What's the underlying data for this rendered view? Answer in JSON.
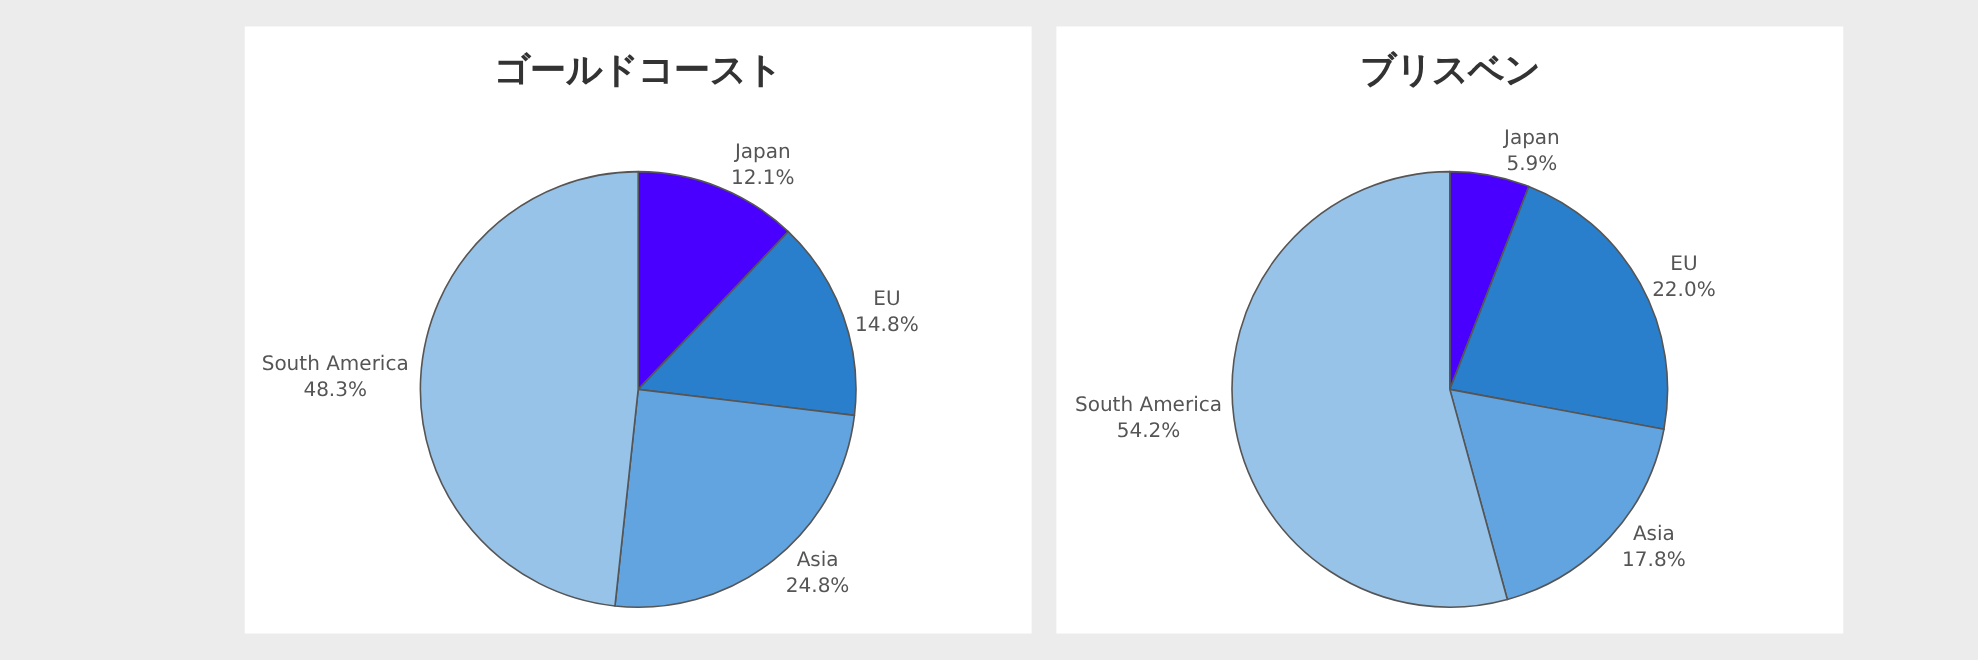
{
  "chart_data": [
    {
      "type": "pie",
      "title": "ゴールドコースト",
      "categories": [
        "Japan",
        "EU",
        "Asia",
        "South America"
      ],
      "values": [
        12.1,
        14.8,
        24.8,
        48.3
      ],
      "value_labels": [
        "12.1%",
        "14.8%",
        "24.8%",
        "48.3%"
      ],
      "colors": [
        "#4a00ff",
        "#2a7fcc",
        "#62a4e0",
        "#98c3e8"
      ],
      "legend": false
    },
    {
      "type": "pie",
      "title": "ブリスベン",
      "categories": [
        "Japan",
        "EU",
        "Asia",
        "South America"
      ],
      "values": [
        5.9,
        22.0,
        17.8,
        54.2
      ],
      "value_labels": [
        "5.9%",
        "22.0%",
        "17.8%",
        "54.2%"
      ],
      "colors": [
        "#4a00ff",
        "#2a7fcc",
        "#62a4e0",
        "#98c3e8"
      ],
      "legend": false
    }
  ]
}
